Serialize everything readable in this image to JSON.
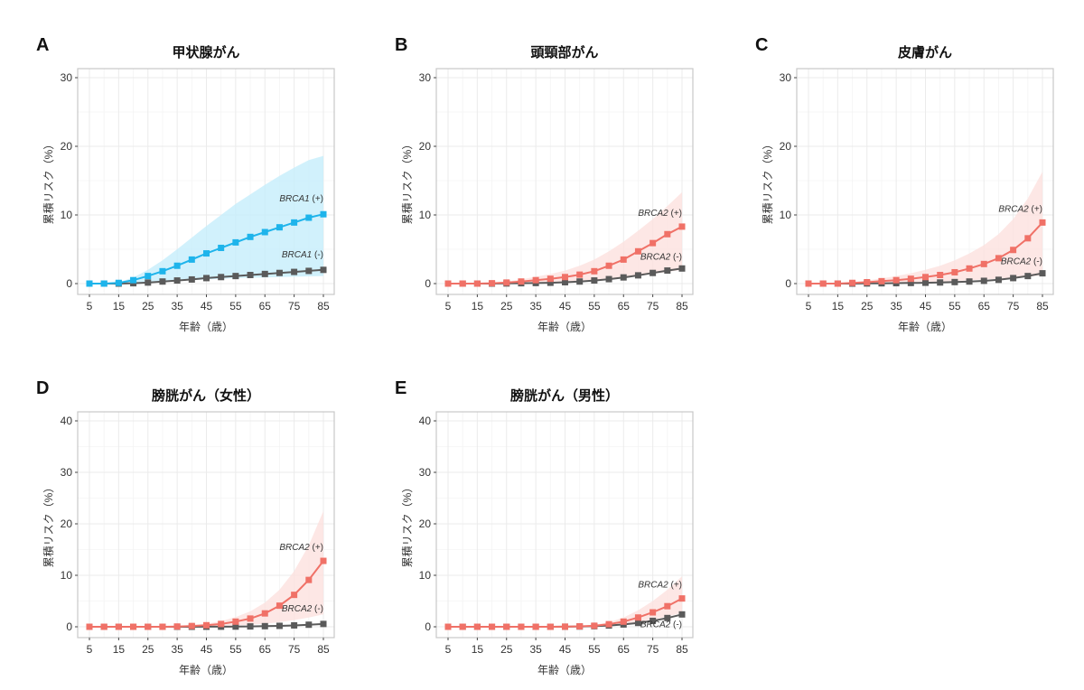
{
  "chart_data": [
    {
      "panel": "A",
      "type": "line",
      "title": "甲状腺がん",
      "xlabel": "年齢（歳）",
      "ylabel": "累積リスク（%）",
      "xlim": [
        5,
        85
      ],
      "ylim": [
        0,
        30
      ],
      "x_ticks": [
        5,
        15,
        25,
        35,
        45,
        55,
        65,
        75,
        85
      ],
      "y_ticks": [
        0,
        10,
        20,
        30
      ],
      "grid": true,
      "x": [
        5,
        10,
        15,
        20,
        25,
        30,
        35,
        40,
        45,
        50,
        55,
        60,
        65,
        70,
        75,
        80,
        85
      ],
      "series": [
        {
          "name": "BRCA1 (+)",
          "gene": "BRCA1",
          "status": "(+)",
          "color": "#1EB4EB",
          "band_color": "#C6EEFB",
          "values": [
            0,
            0,
            0.1,
            0.5,
            1.1,
            1.8,
            2.6,
            3.5,
            4.4,
            5.2,
            6.0,
            6.8,
            7.5,
            8.2,
            8.9,
            9.6,
            10.1
          ],
          "ci_lower": [
            0,
            0,
            0.05,
            0.1,
            0.2,
            0.3,
            0.4,
            0.5,
            0.6,
            0.7,
            0.8,
            0.85,
            0.9,
            0.95,
            1.0,
            1.05,
            1.1
          ],
          "ci_upper": [
            0,
            0,
            0.2,
            0.9,
            2.0,
            3.4,
            5.0,
            6.7,
            8.4,
            10.0,
            11.6,
            13.0,
            14.4,
            15.7,
            16.9,
            18.0,
            18.6
          ]
        },
        {
          "name": "BRCA1 (-)",
          "gene": "BRCA1",
          "status": "(-)",
          "color": "#5A5A5A",
          "values": [
            0,
            0,
            0,
            0.05,
            0.15,
            0.3,
            0.45,
            0.6,
            0.8,
            0.95,
            1.1,
            1.25,
            1.4,
            1.55,
            1.7,
            1.85,
            2.0
          ]
        }
      ]
    },
    {
      "panel": "B",
      "type": "line",
      "title": "頭頸部がん",
      "xlabel": "年齢（歳）",
      "ylabel": "累積リスク（%）",
      "xlim": [
        5,
        85
      ],
      "ylim": [
        0,
        30
      ],
      "x_ticks": [
        5,
        15,
        25,
        35,
        45,
        55,
        65,
        75,
        85
      ],
      "y_ticks": [
        0,
        10,
        20,
        30
      ],
      "grid": true,
      "x": [
        5,
        10,
        15,
        20,
        25,
        30,
        35,
        40,
        45,
        50,
        55,
        60,
        65,
        70,
        75,
        80,
        85
      ],
      "series": [
        {
          "name": "BRCA2 (+)",
          "gene": "BRCA2",
          "status": "(+)",
          "color": "#F07167",
          "band_color": "#FCE1DE",
          "values": [
            0,
            0,
            0,
            0.05,
            0.15,
            0.3,
            0.5,
            0.7,
            0.95,
            1.3,
            1.8,
            2.6,
            3.5,
            4.7,
            5.9,
            7.2,
            8.3
          ],
          "ci_lower": [
            0,
            0,
            0,
            0.02,
            0.05,
            0.1,
            0.15,
            0.2,
            0.3,
            0.4,
            0.5,
            0.7,
            0.9,
            1.1,
            1.4,
            1.7,
            2.0
          ],
          "ci_upper": [
            0,
            0,
            0,
            0.1,
            0.3,
            0.6,
            1.0,
            1.4,
            1.9,
            2.6,
            3.5,
            4.7,
            6.1,
            7.7,
            9.4,
            11.3,
            13.3
          ]
        },
        {
          "name": "BRCA2 (-)",
          "gene": "BRCA2",
          "status": "(-)",
          "color": "#5A5A5A",
          "values": [
            0,
            0,
            0,
            0,
            0.02,
            0.05,
            0.08,
            0.12,
            0.2,
            0.3,
            0.45,
            0.65,
            0.9,
            1.2,
            1.55,
            1.9,
            2.2
          ]
        }
      ]
    },
    {
      "panel": "C",
      "type": "line",
      "title": "皮膚がん",
      "xlabel": "年齢（歳）",
      "ylabel": "累積リスク（%）",
      "xlim": [
        5,
        85
      ],
      "ylim": [
        0,
        30
      ],
      "x_ticks": [
        5,
        15,
        25,
        35,
        45,
        55,
        65,
        75,
        85
      ],
      "y_ticks": [
        0,
        10,
        20,
        30
      ],
      "grid": true,
      "x": [
        5,
        10,
        15,
        20,
        25,
        30,
        35,
        40,
        45,
        50,
        55,
        60,
        65,
        70,
        75,
        80,
        85
      ],
      "series": [
        {
          "name": "BRCA2 (+)",
          "gene": "BRCA2",
          "status": "(+)",
          "color": "#F07167",
          "band_color": "#FCE1DE",
          "values": [
            0,
            0,
            0,
            0.1,
            0.2,
            0.35,
            0.5,
            0.7,
            0.95,
            1.25,
            1.65,
            2.2,
            2.85,
            3.7,
            4.9,
            6.6,
            8.9
          ],
          "ci_lower": [
            0,
            0,
            0,
            0.03,
            0.06,
            0.1,
            0.15,
            0.2,
            0.25,
            0.3,
            0.4,
            0.5,
            0.6,
            0.7,
            0.85,
            1.0,
            1.2
          ],
          "ci_upper": [
            0,
            0,
            0,
            0.2,
            0.45,
            0.75,
            1.1,
            1.5,
            2.0,
            2.6,
            3.4,
            4.4,
            5.6,
            7.2,
            9.4,
            12.4,
            16.3
          ]
        },
        {
          "name": "BRCA2 (-)",
          "gene": "BRCA2",
          "status": "(-)",
          "color": "#5A5A5A",
          "values": [
            0,
            0,
            0,
            0,
            0.02,
            0.04,
            0.06,
            0.09,
            0.12,
            0.16,
            0.22,
            0.3,
            0.4,
            0.55,
            0.8,
            1.1,
            1.5
          ]
        }
      ]
    },
    {
      "panel": "D",
      "type": "line",
      "title": "膀胱がん（女性）",
      "xlabel": "年齢（歳）",
      "ylabel": "累積リスク（%）",
      "xlim": [
        5,
        85
      ],
      "ylim": [
        0,
        40
      ],
      "x_ticks": [
        5,
        15,
        25,
        35,
        45,
        55,
        65,
        75,
        85
      ],
      "y_ticks": [
        0,
        10,
        20,
        30,
        40
      ],
      "grid": true,
      "x": [
        5,
        10,
        15,
        20,
        25,
        30,
        35,
        40,
        45,
        50,
        55,
        60,
        65,
        70,
        75,
        80,
        85
      ],
      "series": [
        {
          "name": "BRCA2 (+)",
          "gene": "BRCA2",
          "status": "(+)",
          "color": "#F07167",
          "band_color": "#FCE1DE",
          "values": [
            0,
            0,
            0,
            0,
            0,
            0,
            0.05,
            0.15,
            0.3,
            0.55,
            1.0,
            1.6,
            2.6,
            4.1,
            6.2,
            9.1,
            12.8
          ],
          "ci_lower": [
            0,
            0,
            0,
            0,
            0,
            0,
            0.02,
            0.05,
            0.1,
            0.15,
            0.25,
            0.4,
            0.6,
            0.9,
            1.3,
            1.8,
            2.4
          ],
          "ci_upper": [
            0,
            0,
            0,
            0,
            0,
            0,
            0.1,
            0.3,
            0.6,
            1.1,
            1.9,
            3.0,
            4.7,
            7.2,
            10.8,
            15.8,
            22.5
          ]
        },
        {
          "name": "BRCA2 (-)",
          "gene": "BRCA2",
          "status": "(-)",
          "color": "#5A5A5A",
          "values": [
            0,
            0,
            0,
            0,
            0,
            0,
            0,
            0,
            0.01,
            0.02,
            0.04,
            0.07,
            0.12,
            0.18,
            0.27,
            0.4,
            0.55
          ]
        }
      ]
    },
    {
      "panel": "E",
      "type": "line",
      "title": "膀胱がん（男性）",
      "xlabel": "年齢（歳）",
      "ylabel": "累積リスク（%）",
      "xlim": [
        5,
        85
      ],
      "ylim": [
        0,
        40
      ],
      "x_ticks": [
        5,
        15,
        25,
        35,
        45,
        55,
        65,
        75,
        85
      ],
      "y_ticks": [
        0,
        10,
        20,
        30,
        40
      ],
      "grid": true,
      "x": [
        5,
        10,
        15,
        20,
        25,
        30,
        35,
        40,
        45,
        50,
        55,
        60,
        65,
        70,
        75,
        80,
        85
      ],
      "series": [
        {
          "name": "BRCA2 (+)",
          "gene": "BRCA2",
          "status": "(+)",
          "color": "#F07167",
          "band_color": "#FCE1DE",
          "values": [
            0,
            0,
            0,
            0,
            0,
            0,
            0,
            0,
            0.02,
            0.08,
            0.2,
            0.5,
            1.0,
            1.8,
            2.8,
            4.0,
            5.5
          ],
          "ci_lower": [
            0,
            0,
            0,
            0,
            0,
            0,
            0,
            0,
            0.01,
            0.04,
            0.1,
            0.25,
            0.5,
            0.9,
            1.4,
            2.0,
            2.7
          ],
          "ci_upper": [
            0,
            0,
            0,
            0,
            0,
            0,
            0,
            0,
            0.04,
            0.15,
            0.4,
            0.9,
            1.8,
            3.2,
            5.0,
            7.2,
            9.8
          ]
        },
        {
          "name": "BRCA2 (-)",
          "gene": "BRCA2",
          "status": "(-)",
          "color": "#5A5A5A",
          "values": [
            0,
            0,
            0,
            0,
            0,
            0,
            0,
            0,
            0.01,
            0.05,
            0.12,
            0.25,
            0.45,
            0.75,
            1.15,
            1.7,
            2.4
          ]
        }
      ]
    }
  ]
}
